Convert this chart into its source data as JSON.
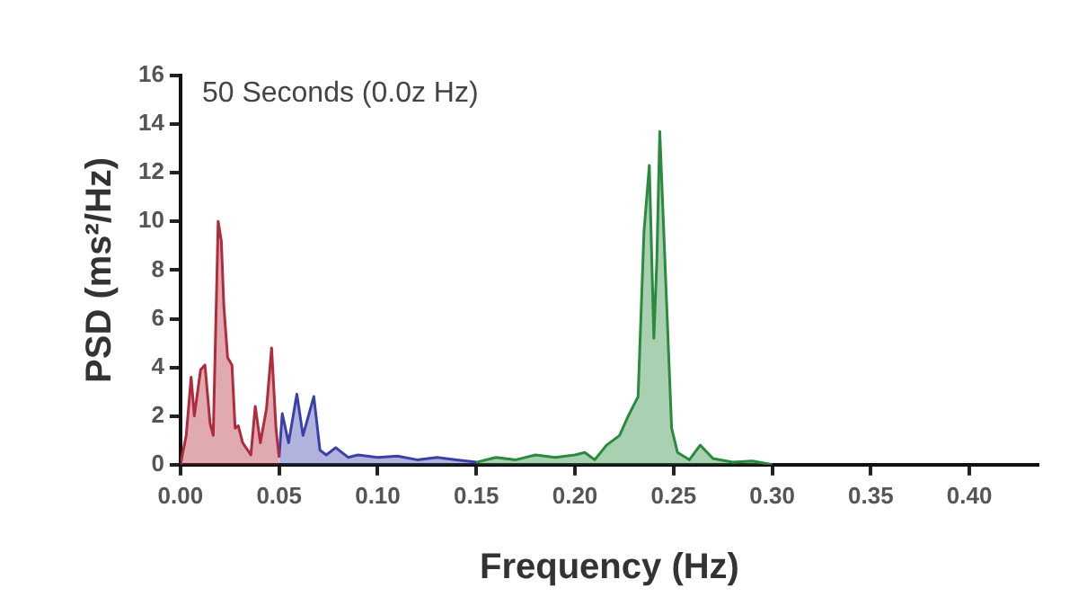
{
  "chart_data": {
    "type": "area",
    "title": "50 Seconds (0.0z Hz)",
    "xlabel": "Frequency (Hz)",
    "ylabel": "PSD (ms²/Hz)",
    "xlim": [
      0,
      0.435
    ],
    "xticks": [
      {
        "value": 0,
        "label": "0.00"
      },
      {
        "value": 0.05,
        "label": "0.05"
      },
      {
        "value": 0.1,
        "label": "0.10"
      },
      {
        "value": 0.15,
        "label": "0.15"
      },
      {
        "value": 0.2,
        "label": "0.20"
      },
      {
        "value": 0.25,
        "label": "0.25"
      },
      {
        "value": 0.3,
        "label": "0.30"
      },
      {
        "value": 0.35,
        "label": "0.35"
      },
      {
        "value": 0.4,
        "label": "0.40"
      }
    ],
    "ylim": [
      0,
      16
    ],
    "yticks": [
      0,
      2,
      4,
      6,
      8,
      10,
      12,
      14,
      16
    ],
    "grid": false,
    "legend": false,
    "marker": "none",
    "series": [
      {
        "color": "#b02c3c",
        "x": [
          0,
          0.0029,
          0.0054,
          0.007,
          0.0102,
          0.0124,
          0.015,
          0.0166,
          0.0191,
          0.0207,
          0.022,
          0.0239,
          0.0261,
          0.0277,
          0.0293,
          0.0315,
          0.0357,
          0.0379,
          0.0405,
          0.0436,
          0.0462,
          0.0484,
          0.05
        ],
        "values": [
          0,
          1.2,
          3.6,
          2.0,
          3.9,
          4.1,
          1.7,
          1.2,
          10.0,
          9.2,
          6.5,
          4.4,
          4.1,
          1.5,
          1.6,
          0.9,
          0.4,
          2.4,
          0.9,
          2.3,
          4.8,
          1.5,
          0.3
        ]
      },
      {
        "color": "#3a40a8",
        "x": [
          0.05,
          0.0516,
          0.0548,
          0.059,
          0.0621,
          0.0676,
          0.0707,
          0.0739,
          0.0787,
          0.085,
          0.09,
          0.1,
          0.11,
          0.12,
          0.13,
          0.14,
          0.15
        ],
        "values": [
          0.3,
          2.1,
          0.9,
          2.9,
          1.2,
          2.8,
          0.6,
          0.4,
          0.7,
          0.3,
          0.4,
          0.3,
          0.35,
          0.2,
          0.3,
          0.2,
          0.1
        ]
      },
      {
        "color": "#2a8a3e",
        "x": [
          0.15,
          0.16,
          0.17,
          0.18,
          0.19,
          0.2,
          0.205,
          0.21,
          0.216,
          0.2226,
          0.227,
          0.232,
          0.235,
          0.2377,
          0.24,
          0.2415,
          0.243,
          0.246,
          0.249,
          0.252,
          0.258,
          0.2635,
          0.27,
          0.28,
          0.29,
          0.3
        ],
        "values": [
          0.1,
          0.3,
          0.2,
          0.4,
          0.3,
          0.4,
          0.5,
          0.2,
          0.8,
          1.2,
          2.0,
          2.8,
          9.6,
          12.3,
          5.2,
          8.4,
          13.7,
          7.6,
          1.5,
          0.5,
          0.2,
          0.8,
          0.25,
          0.1,
          0.15,
          0
        ]
      }
    ]
  }
}
